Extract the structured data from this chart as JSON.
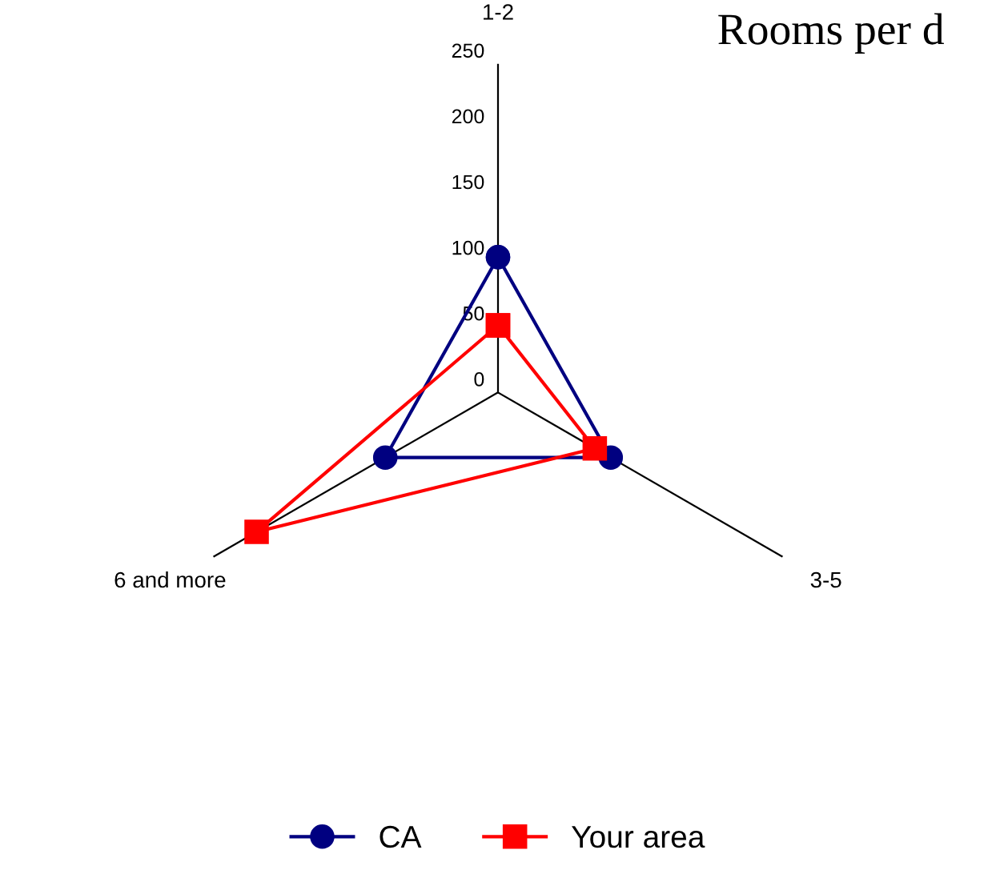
{
  "chart_data": {
    "type": "radar",
    "title": "Rooms per d",
    "categories": [
      "1-2",
      "3-5",
      "6 and more"
    ],
    "ylim": [
      0,
      250
    ],
    "yticks": [
      0,
      50,
      100,
      150,
      200,
      250
    ],
    "grid": "x",
    "legend": "bottom",
    "series": [
      {
        "name": "CA",
        "color": "#000080",
        "marker": "circle",
        "values": [
          103,
          99,
          99
        ]
      },
      {
        "name": "Your area",
        "color": "#ff0000",
        "marker": "square",
        "values": [
          51,
          85,
          212
        ]
      }
    ]
  }
}
